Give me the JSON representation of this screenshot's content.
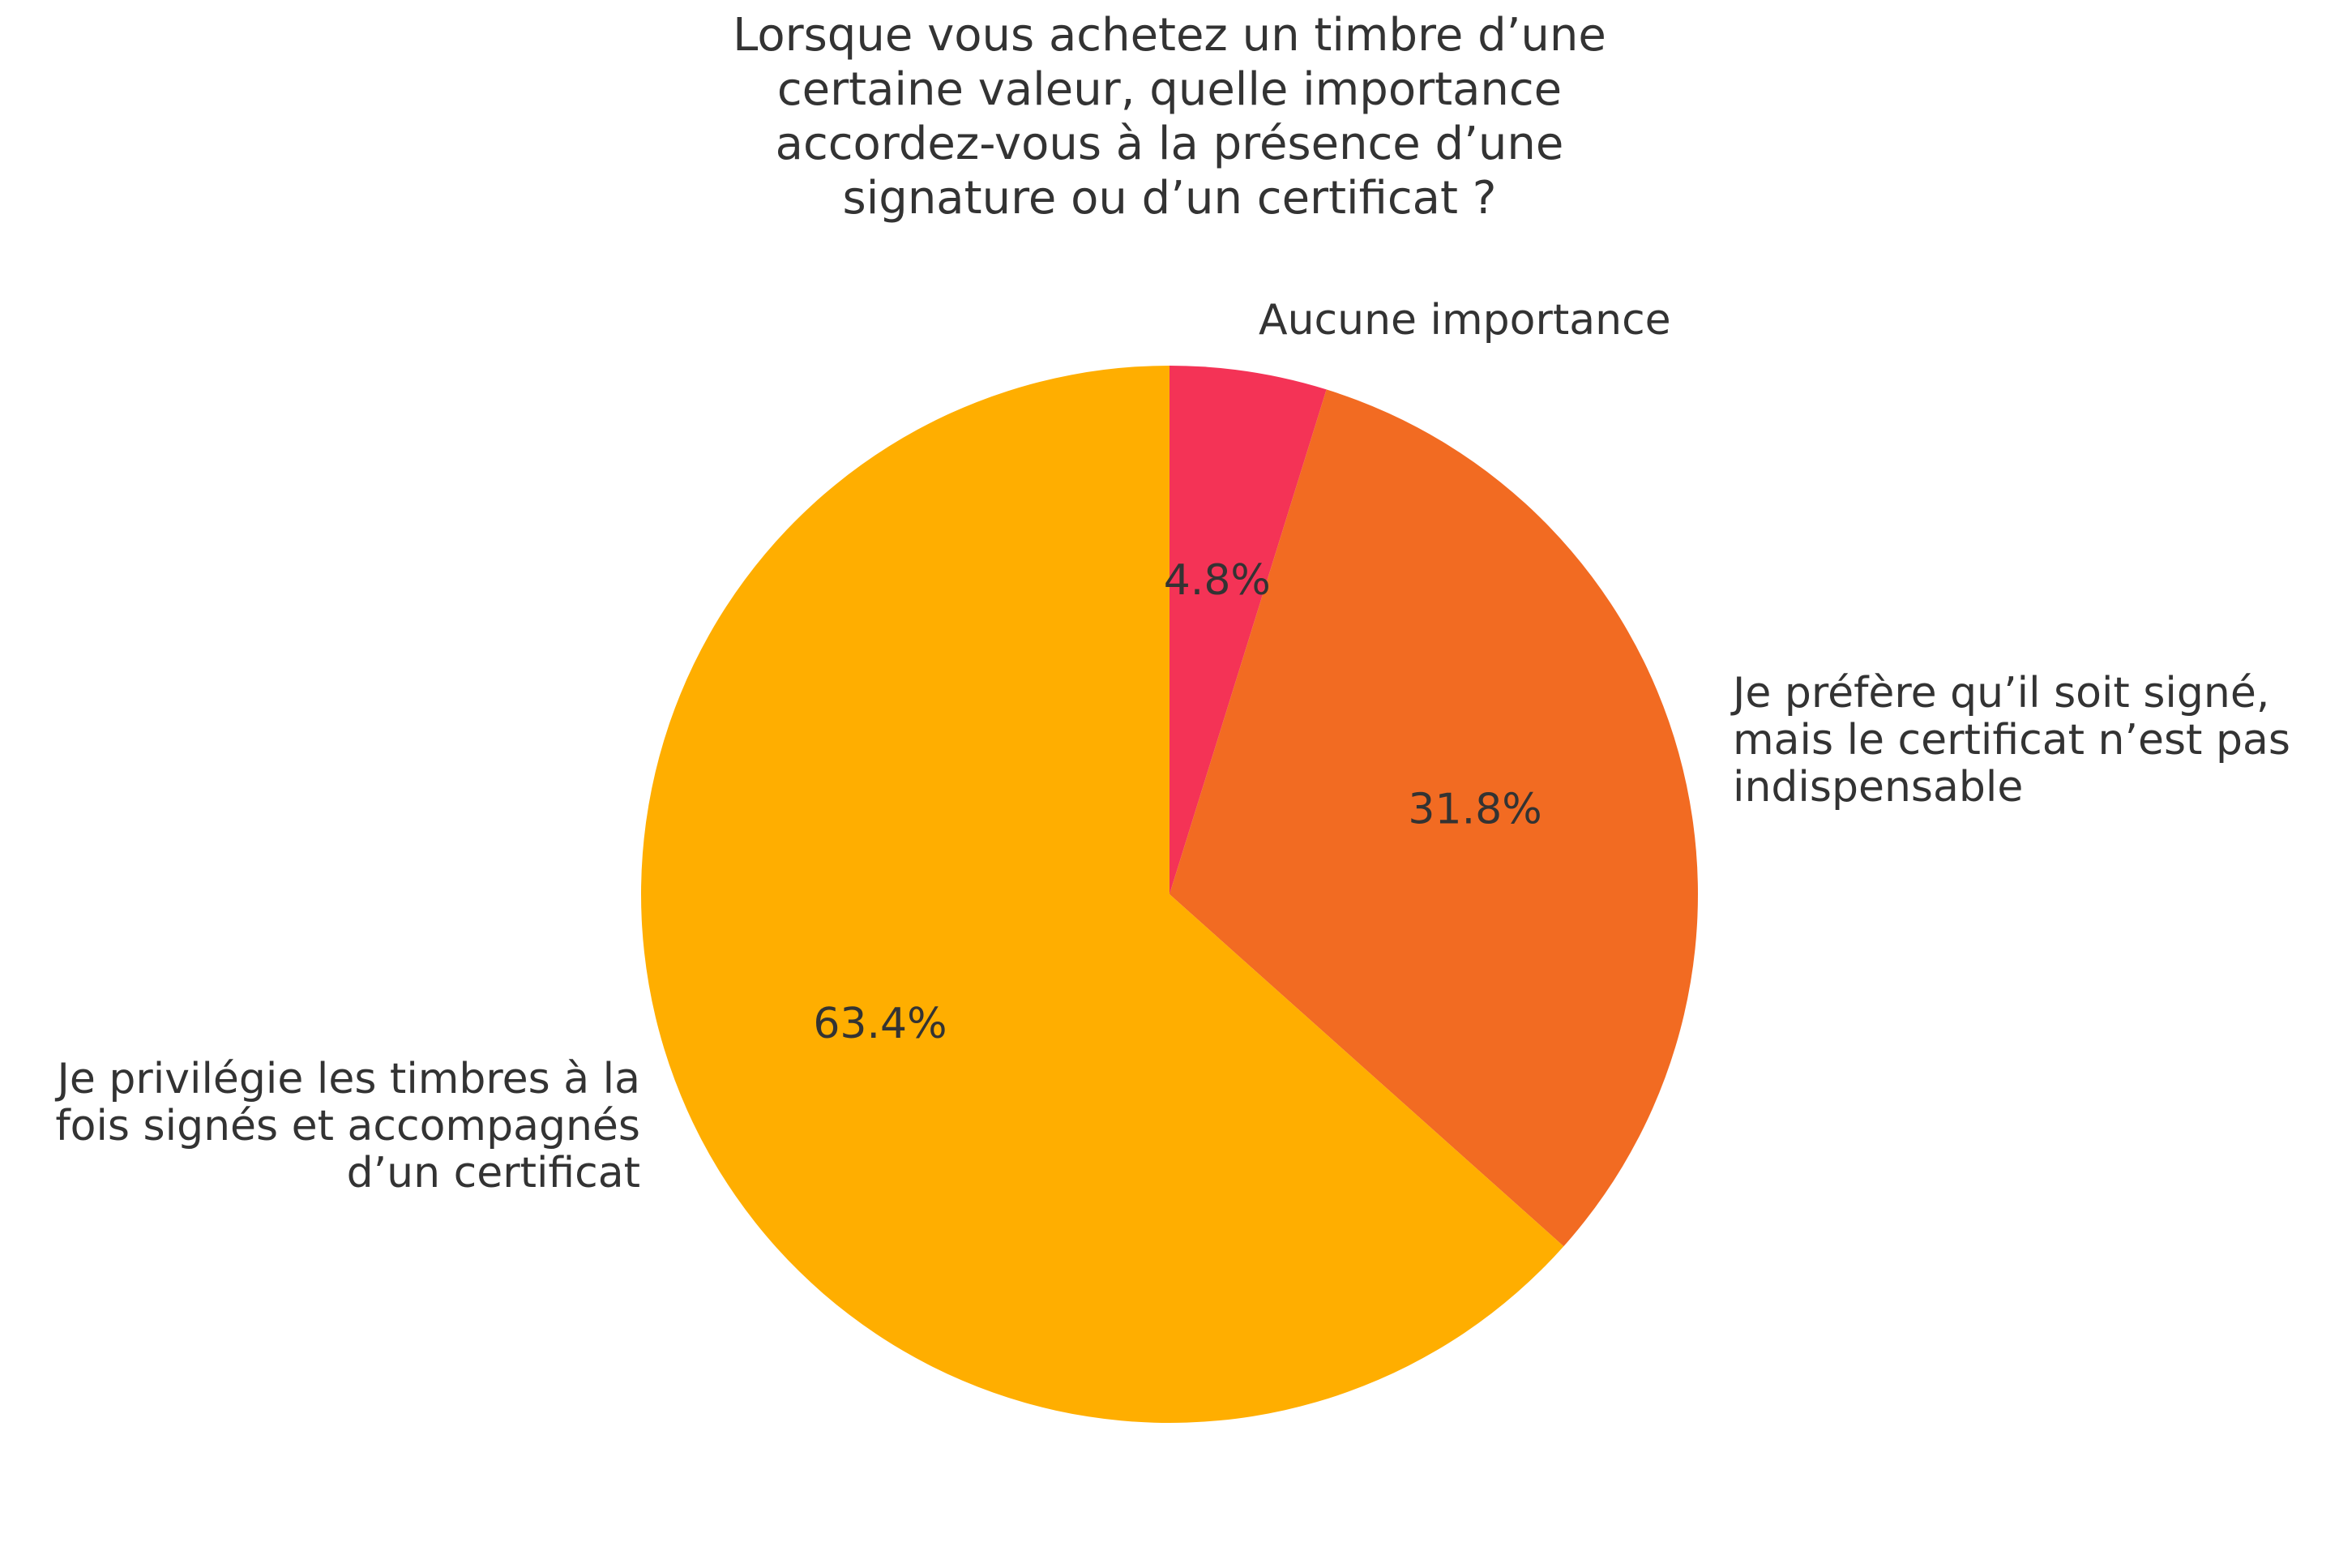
{
  "chart_data": {
    "type": "pie",
    "title_lines": [
      "Lorsque vous achetez un timbre d’une",
      "certaine valeur, quelle importance",
      "accordez-vous à la présence d’une",
      "signature ou d’un certificat ?"
    ],
    "start": "top",
    "direction": "clockwise",
    "slices": [
      {
        "label_lines": [
          "Aucune importance"
        ],
        "value": 4.8,
        "pct_label": "4.8%",
        "color": "#F43356"
      },
      {
        "label_lines": [
          "Je préfère qu’il soit signé,",
          "mais le certificat n’est pas",
          "indispensable"
        ],
        "value": 31.8,
        "pct_label": "31.8%",
        "color": "#F26B22"
      },
      {
        "label_lines": [
          "Je privilégie les timbres à la",
          "fois signés et accompagnés",
          "d’un certificat"
        ],
        "value": 63.4,
        "pct_label": "63.4%",
        "color": "#FFAE00"
      }
    ]
  }
}
